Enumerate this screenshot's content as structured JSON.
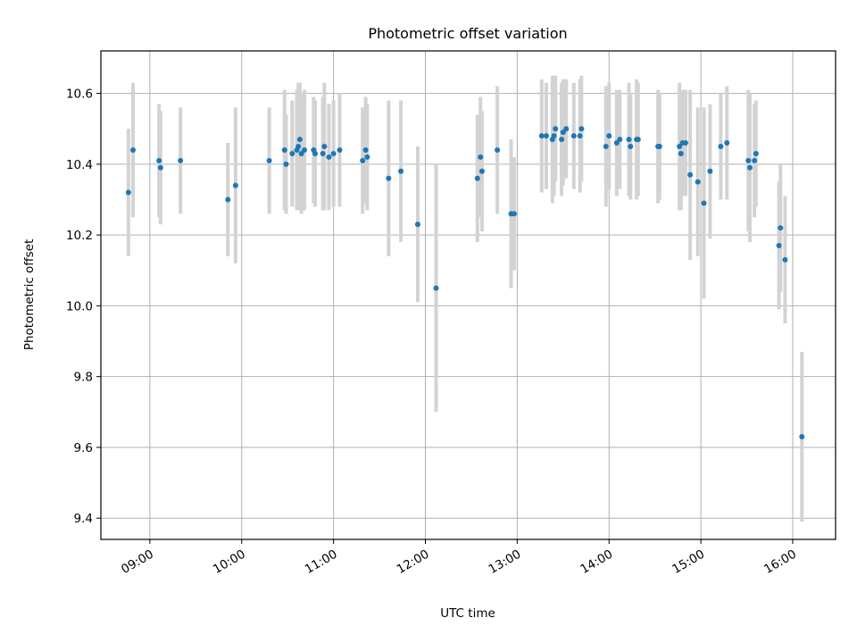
{
  "chart_data": {
    "type": "scatter",
    "title": "Photometric offset variation",
    "xlabel": "UTC time",
    "ylabel": "Photometric offset",
    "xlim": [
      "08:28",
      "16:28"
    ],
    "ylim": [
      9.34,
      10.72
    ],
    "grid": true,
    "x_ticks": [
      "09:00",
      "10:00",
      "11:00",
      "12:00",
      "13:00",
      "14:00",
      "15:00",
      "16:00"
    ],
    "y_ticks": [
      "9.4",
      "9.6",
      "9.8",
      "10.0",
      "10.2",
      "10.4",
      "10.6"
    ],
    "colors": {
      "point": "#1f77b4",
      "errorbar": "#d3d3d3",
      "grid": "#b0b0b0"
    },
    "series": [
      {
        "points": [
          {
            "x": "08:46",
            "y": 10.32,
            "err": 0.18
          },
          {
            "x": "08:49",
            "y": 10.44,
            "err": 0.19
          },
          {
            "x": "09:06",
            "y": 10.41,
            "err": 0.16
          },
          {
            "x": "09:07",
            "y": 10.39,
            "err": 0.16
          },
          {
            "x": "09:20",
            "y": 10.41,
            "err": 0.15
          },
          {
            "x": "09:51",
            "y": 10.3,
            "err": 0.16
          },
          {
            "x": "09:56",
            "y": 10.34,
            "err": 0.22
          },
          {
            "x": "10:18",
            "y": 10.41,
            "err": 0.15
          },
          {
            "x": "10:28",
            "y": 10.44,
            "err": 0.17
          },
          {
            "x": "10:29",
            "y": 10.4,
            "err": 0.14
          },
          {
            "x": "10:33",
            "y": 10.43,
            "err": 0.15
          },
          {
            "x": "10:36",
            "y": 10.44,
            "err": 0.17
          },
          {
            "x": "10:37",
            "y": 10.45,
            "err": 0.18
          },
          {
            "x": "10:38",
            "y": 10.47,
            "err": 0.16
          },
          {
            "x": "10:39",
            "y": 10.43,
            "err": 0.17
          },
          {
            "x": "10:41",
            "y": 10.44,
            "err": 0.17
          },
          {
            "x": "10:47",
            "y": 10.44,
            "err": 0.15
          },
          {
            "x": "10:48",
            "y": 10.43,
            "err": 0.15
          },
          {
            "x": "10:53",
            "y": 10.43,
            "err": 0.16
          },
          {
            "x": "10:54",
            "y": 10.45,
            "err": 0.18
          },
          {
            "x": "10:57",
            "y": 10.42,
            "err": 0.15
          },
          {
            "x": "11:00",
            "y": 10.43,
            "err": 0.15
          },
          {
            "x": "11:04",
            "y": 10.44,
            "err": 0.16
          },
          {
            "x": "11:19",
            "y": 10.41,
            "err": 0.15
          },
          {
            "x": "11:21",
            "y": 10.44,
            "err": 0.15
          },
          {
            "x": "11:22",
            "y": 10.42,
            "err": 0.15
          },
          {
            "x": "11:36",
            "y": 10.36,
            "err": 0.22
          },
          {
            "x": "11:44",
            "y": 10.38,
            "err": 0.2
          },
          {
            "x": "11:55",
            "y": 10.23,
            "err": 0.22
          },
          {
            "x": "12:07",
            "y": 10.05,
            "err": 0.35
          },
          {
            "x": "12:34",
            "y": 10.36,
            "err": 0.18
          },
          {
            "x": "12:36",
            "y": 10.42,
            "err": 0.17
          },
          {
            "x": "12:37",
            "y": 10.38,
            "err": 0.17
          },
          {
            "x": "12:47",
            "y": 10.44,
            "err": 0.18
          },
          {
            "x": "12:56",
            "y": 10.26,
            "err": 0.21
          },
          {
            "x": "12:58",
            "y": 10.26,
            "err": 0.16
          },
          {
            "x": "13:16",
            "y": 10.48,
            "err": 0.16
          },
          {
            "x": "13:19",
            "y": 10.48,
            "err": 0.15
          },
          {
            "x": "13:23",
            "y": 10.47,
            "err": 0.18
          },
          {
            "x": "13:24",
            "y": 10.48,
            "err": 0.17
          },
          {
            "x": "13:25",
            "y": 10.5,
            "err": 0.15
          },
          {
            "x": "13:29",
            "y": 10.47,
            "err": 0.16
          },
          {
            "x": "13:30",
            "y": 10.49,
            "err": 0.15
          },
          {
            "x": "13:32",
            "y": 10.5,
            "err": 0.14
          },
          {
            "x": "13:37",
            "y": 10.48,
            "err": 0.15
          },
          {
            "x": "13:41",
            "y": 10.48,
            "err": 0.16
          },
          {
            "x": "13:42",
            "y": 10.5,
            "err": 0.15
          },
          {
            "x": "13:58",
            "y": 10.45,
            "err": 0.17
          },
          {
            "x": "14:00",
            "y": 10.48,
            "err": 0.15
          },
          {
            "x": "14:05",
            "y": 10.46,
            "err": 0.15
          },
          {
            "x": "14:07",
            "y": 10.47,
            "err": 0.14
          },
          {
            "x": "14:13",
            "y": 10.47,
            "err": 0.16
          },
          {
            "x": "14:14",
            "y": 10.45,
            "err": 0.15
          },
          {
            "x": "14:18",
            "y": 10.47,
            "err": 0.17
          },
          {
            "x": "14:19",
            "y": 10.47,
            "err": 0.16
          },
          {
            "x": "14:32",
            "y": 10.45,
            "err": 0.16
          },
          {
            "x": "14:33",
            "y": 10.45,
            "err": 0.15
          },
          {
            "x": "14:46",
            "y": 10.45,
            "err": 0.18
          },
          {
            "x": "14:47",
            "y": 10.43,
            "err": 0.16
          },
          {
            "x": "14:48",
            "y": 10.46,
            "err": 0.15
          },
          {
            "x": "14:50",
            "y": 10.46,
            "err": 0.15
          },
          {
            "x": "14:53",
            "y": 10.37,
            "err": 0.24
          },
          {
            "x": "14:58",
            "y": 10.35,
            "err": 0.21
          },
          {
            "x": "15:02",
            "y": 10.29,
            "err": 0.27
          },
          {
            "x": "15:06",
            "y": 10.38,
            "err": 0.19
          },
          {
            "x": "15:13",
            "y": 10.45,
            "err": 0.15
          },
          {
            "x": "15:17",
            "y": 10.46,
            "err": 0.16
          },
          {
            "x": "15:31",
            "y": 10.41,
            "err": 0.2
          },
          {
            "x": "15:32",
            "y": 10.39,
            "err": 0.21
          },
          {
            "x": "15:35",
            "y": 10.41,
            "err": 0.16
          },
          {
            "x": "15:36",
            "y": 10.43,
            "err": 0.15
          },
          {
            "x": "15:51",
            "y": 10.17,
            "err": 0.18
          },
          {
            "x": "15:52",
            "y": 10.22,
            "err": 0.18
          },
          {
            "x": "15:55",
            "y": 10.13,
            "err": 0.18
          },
          {
            "x": "16:06",
            "y": 9.63,
            "err": 0.24
          }
        ]
      }
    ]
  }
}
